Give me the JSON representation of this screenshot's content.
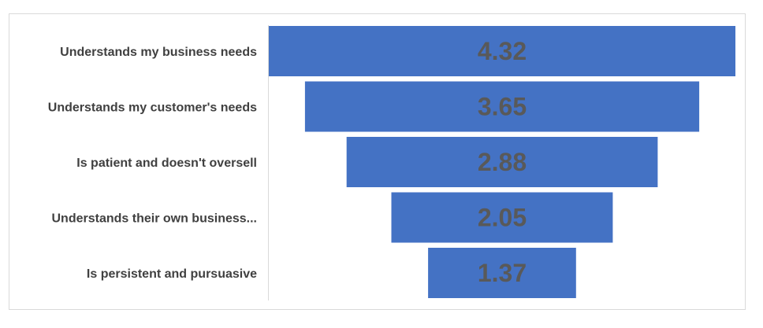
{
  "chart_data": {
    "type": "bar",
    "orientation": "horizontal",
    "style": "funnel",
    "title": "",
    "xlabel": "",
    "ylabel": "",
    "categories": [
      "Understands my business needs",
      "Understands my customer's needs",
      "Is patient and doesn't oversell",
      "Understands their own  business...",
      "Is persistent and pursuasive"
    ],
    "values": [
      4.32,
      3.65,
      2.88,
      2.05,
      1.37
    ],
    "value_labels": [
      "4.32",
      "3.65",
      "2.88",
      "2.05",
      "1.37"
    ],
    "bar_color": "#4472c4",
    "label_color": "#595959",
    "axis_color": "#d9d9d9",
    "grid": false,
    "legend": "none"
  }
}
